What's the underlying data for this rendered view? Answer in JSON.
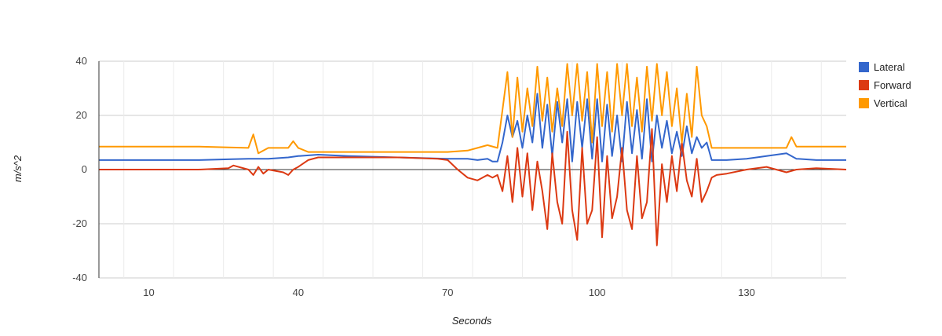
{
  "chart_data": {
    "type": "line",
    "xlabel": "Seconds",
    "ylabel": "m/s^2",
    "xlim": [
      0,
      150
    ],
    "ylim": [
      -40,
      40
    ],
    "x_ticks": [
      10,
      40,
      70,
      100,
      130
    ],
    "y_ticks": [
      40,
      20,
      0,
      -20,
      -40
    ],
    "x_ticks_labels": [
      "10",
      "40",
      "70",
      "100",
      "130"
    ],
    "y_ticks_labels": [
      "40",
      "20",
      "0",
      "-20",
      "-40"
    ],
    "grid": true,
    "legend_position": "right",
    "series": [
      {
        "name": "Lateral",
        "color": "#3366cc",
        "x": [
          0,
          10,
          20,
          26,
          30,
          34,
          38,
          40,
          44,
          50,
          60,
          70,
          74,
          76,
          78,
          79,
          80,
          81,
          82,
          83,
          84,
          85,
          86,
          87,
          88,
          89,
          90,
          91,
          92,
          93,
          94,
          95,
          96,
          97,
          98,
          99,
          100,
          101,
          102,
          103,
          104,
          105,
          106,
          107,
          108,
          109,
          110,
          111,
          112,
          113,
          114,
          115,
          116,
          117,
          118,
          119,
          120,
          121,
          122,
          123,
          126,
          130,
          134,
          138,
          140,
          144,
          150
        ],
        "y": [
          3.5,
          3.5,
          3.5,
          3.8,
          4,
          4,
          4.5,
          5,
          5.5,
          5,
          4.5,
          4,
          4,
          3.5,
          4,
          3,
          3,
          10,
          20,
          12,
          18,
          8,
          20,
          10,
          28,
          8,
          24,
          5,
          25,
          10,
          26,
          3,
          25,
          8,
          26,
          4,
          26,
          3,
          24,
          5,
          20,
          3,
          25,
          6,
          22,
          4,
          26,
          3,
          20,
          8,
          18,
          6,
          14,
          5,
          16,
          6,
          12,
          8,
          10,
          3.5,
          3.5,
          4,
          5,
          6,
          4,
          3.5,
          3.5
        ]
      },
      {
        "name": "Forward",
        "color": "#dc3912",
        "x": [
          0,
          10,
          20,
          26,
          27,
          30,
          31,
          32,
          33,
          34,
          37,
          38,
          39,
          40,
          42,
          44,
          50,
          60,
          68,
          70,
          72,
          74,
          76,
          78,
          79,
          80,
          81,
          82,
          83,
          84,
          85,
          86,
          87,
          88,
          89,
          90,
          91,
          92,
          93,
          94,
          95,
          96,
          97,
          98,
          99,
          100,
          101,
          102,
          103,
          104,
          105,
          106,
          107,
          108,
          109,
          110,
          111,
          112,
          113,
          114,
          115,
          116,
          117,
          118,
          119,
          120,
          121,
          122,
          123,
          124,
          126,
          130,
          134,
          138,
          140,
          144,
          150
        ],
        "y": [
          0,
          0,
          0,
          0.5,
          1.5,
          0,
          -2,
          1,
          -1.5,
          0,
          -1,
          -2,
          0,
          1,
          3.5,
          4.5,
          4.5,
          4.5,
          4,
          3.5,
          0,
          -3,
          -4,
          -2,
          -3,
          -2,
          -8,
          5,
          -12,
          8,
          -10,
          6,
          -15,
          3,
          -8,
          -22,
          6,
          -12,
          -20,
          14,
          -15,
          -26,
          8,
          -20,
          -15,
          12,
          -25,
          5,
          -18,
          -10,
          8,
          -15,
          -22,
          5,
          -18,
          -12,
          15,
          -28,
          2,
          -12,
          5,
          -8,
          10,
          -4,
          -10,
          4,
          -12,
          -8,
          -3,
          -2,
          -1.5,
          0,
          1,
          -1,
          0,
          0.5,
          0
        ]
      },
      {
        "name": "Vertical",
        "color": "#ff9900",
        "x": [
          0,
          10,
          20,
          26,
          30,
          31,
          32,
          34,
          38,
          39,
          40,
          42,
          44,
          50,
          60,
          70,
          74,
          76,
          78,
          80,
          81,
          82,
          83,
          84,
          85,
          86,
          87,
          88,
          89,
          90,
          91,
          92,
          93,
          94,
          95,
          96,
          97,
          98,
          99,
          100,
          101,
          102,
          103,
          104,
          105,
          106,
          107,
          108,
          109,
          110,
          111,
          112,
          113,
          114,
          115,
          116,
          117,
          118,
          119,
          120,
          121,
          122,
          123,
          126,
          130,
          134,
          138,
          139,
          140,
          144,
          150
        ],
        "y": [
          8.5,
          8.5,
          8.5,
          8.2,
          8,
          13,
          6,
          8,
          8,
          10.5,
          8,
          6.5,
          6.5,
          6.5,
          6.5,
          6.5,
          7,
          8,
          9,
          8,
          22,
          36,
          12,
          34,
          14,
          30,
          16,
          38,
          18,
          34,
          14,
          30,
          16,
          39,
          20,
          39,
          18,
          36,
          10,
          39,
          16,
          36,
          14,
          39,
          20,
          39,
          16,
          34,
          14,
          38,
          18,
          39,
          20,
          36,
          16,
          30,
          10,
          28,
          12,
          38,
          20,
          16,
          8,
          8,
          8,
          8,
          8,
          12,
          8.5,
          8.5,
          8.5
        ]
      }
    ]
  }
}
